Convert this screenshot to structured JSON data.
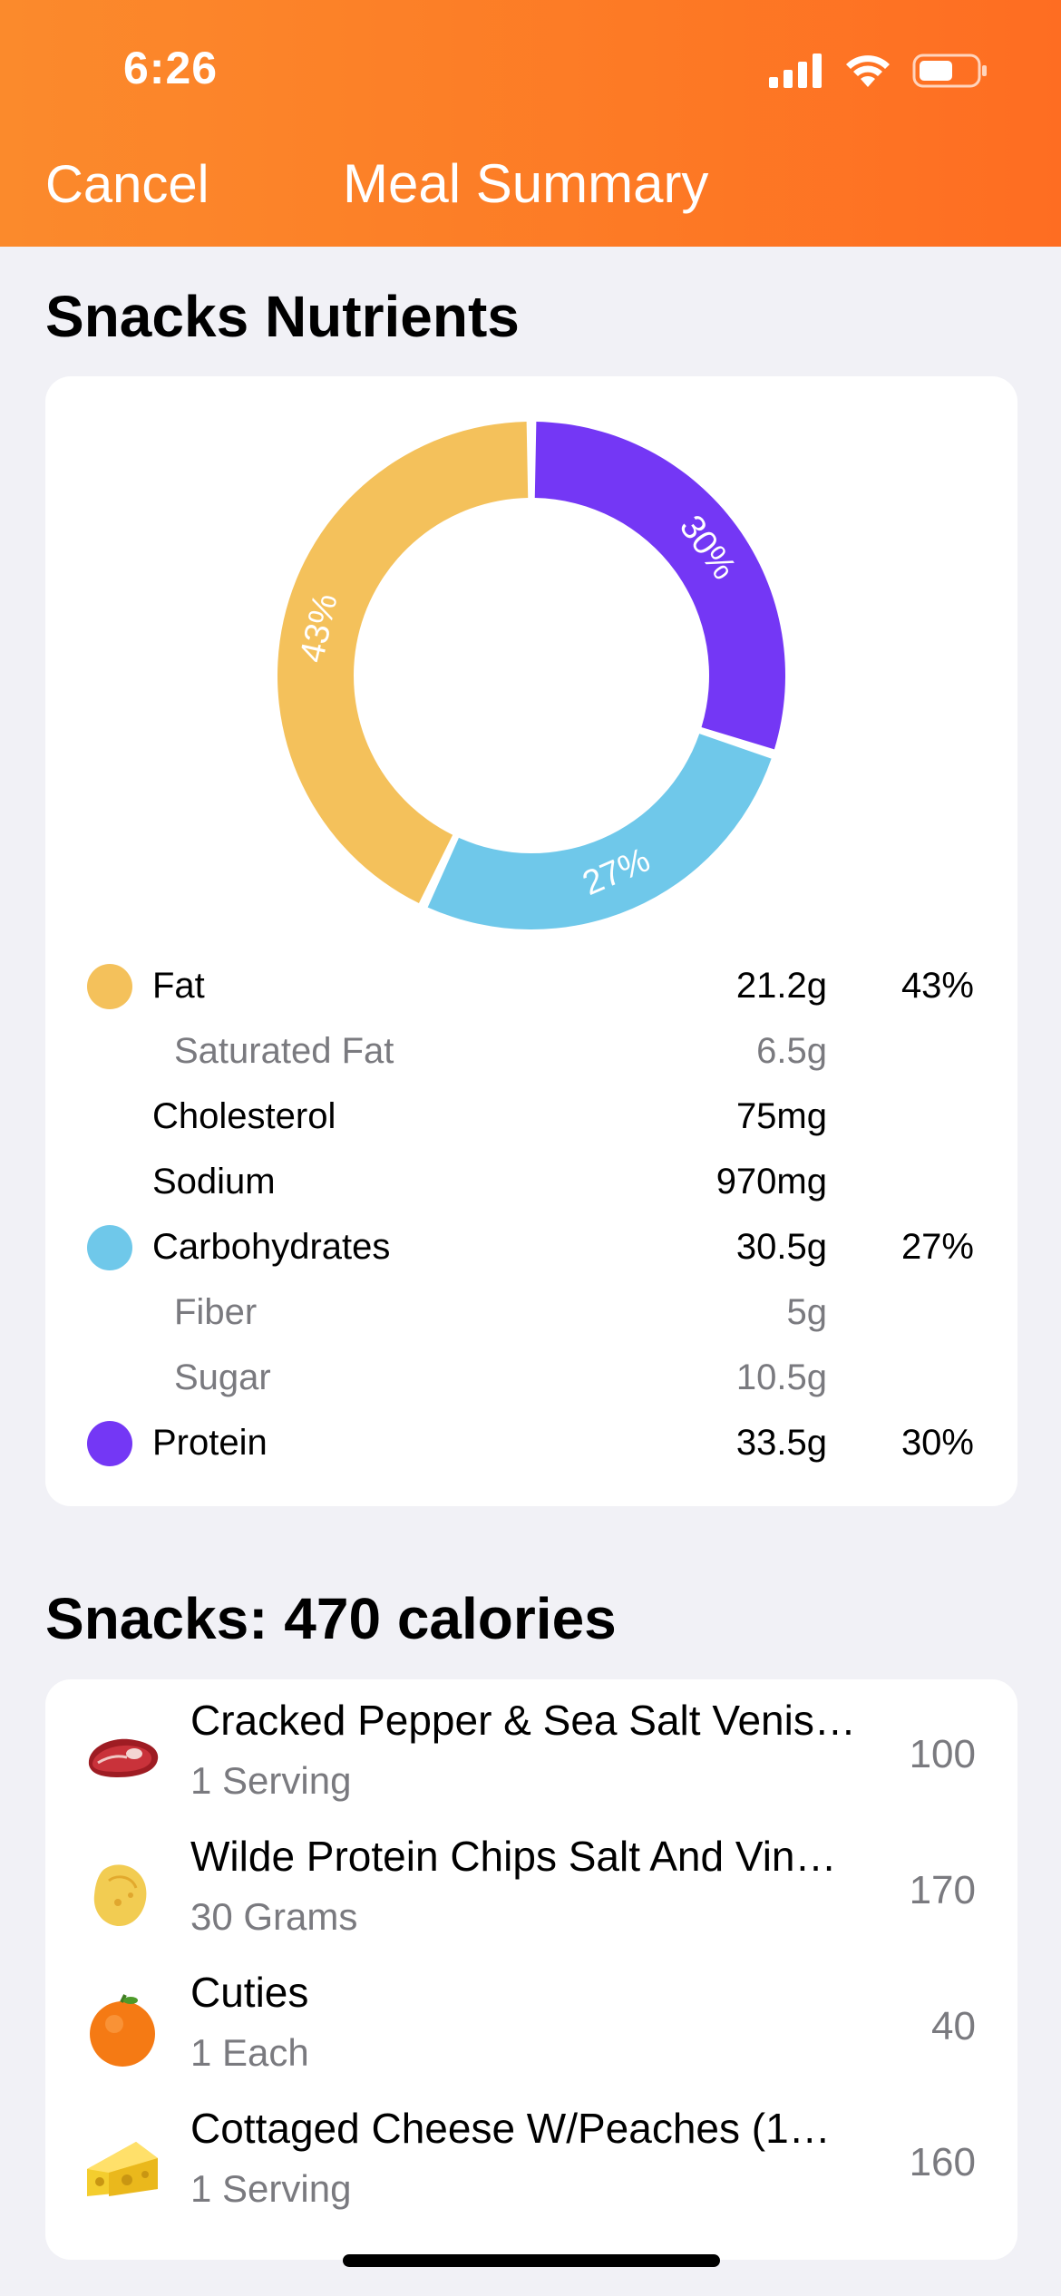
{
  "status_bar": {
    "time": "6:26"
  },
  "header": {
    "cancel_label": "Cancel",
    "title": "Meal Summary"
  },
  "nutrients_section": {
    "title": "Snacks Nutrients"
  },
  "colors": {
    "fat": "#f4c15b",
    "carbohydrates": "#6fc8ea",
    "protein": "#7437f5",
    "header_orange": "#fd7a25"
  },
  "chart_data": {
    "type": "pie",
    "categories": [
      "Fat",
      "Carbohydrates",
      "Protein"
    ],
    "values": [
      43,
      27,
      30
    ],
    "labels": [
      "43%",
      "27%",
      "30%"
    ]
  },
  "nutrients": [
    {
      "label": "Fat",
      "amount": "21.2g",
      "percent": "43%",
      "dot": "fat",
      "sub": false
    },
    {
      "label": "Saturated Fat",
      "amount": "6.5g",
      "percent": "",
      "dot": "",
      "sub": true
    },
    {
      "label": "Cholesterol",
      "amount": "75mg",
      "percent": "",
      "dot": "",
      "sub": false
    },
    {
      "label": "Sodium",
      "amount": "970mg",
      "percent": "",
      "dot": "",
      "sub": false
    },
    {
      "label": "Carbohydrates",
      "amount": "30.5g",
      "percent": "27%",
      "dot": "carbohydrates",
      "sub": false
    },
    {
      "label": "Fiber",
      "amount": "5g",
      "percent": "",
      "dot": "",
      "sub": true
    },
    {
      "label": "Sugar",
      "amount": "10.5g",
      "percent": "",
      "dot": "",
      "sub": true
    },
    {
      "label": "Protein",
      "amount": "33.5g",
      "percent": "30%",
      "dot": "protein",
      "sub": false
    }
  ],
  "foods_section": {
    "title": "Snacks: 470 calories"
  },
  "foods": [
    {
      "name": "Cracked Pepper & Sea Salt Venis…",
      "serving": "1 Serving",
      "calories": "100",
      "icon": "steak-icon"
    },
    {
      "name": "Wilde Protein Chips Salt And Vin…",
      "serving": "30 Grams",
      "calories": "170",
      "icon": "chip-icon"
    },
    {
      "name": "Cuties",
      "serving": "1 Each",
      "calories": "40",
      "icon": "orange-icon"
    },
    {
      "name": "Cottaged Cheese W/Peaches (1…",
      "serving": "1 Serving",
      "calories": "160",
      "icon": "cheese-icon"
    }
  ]
}
